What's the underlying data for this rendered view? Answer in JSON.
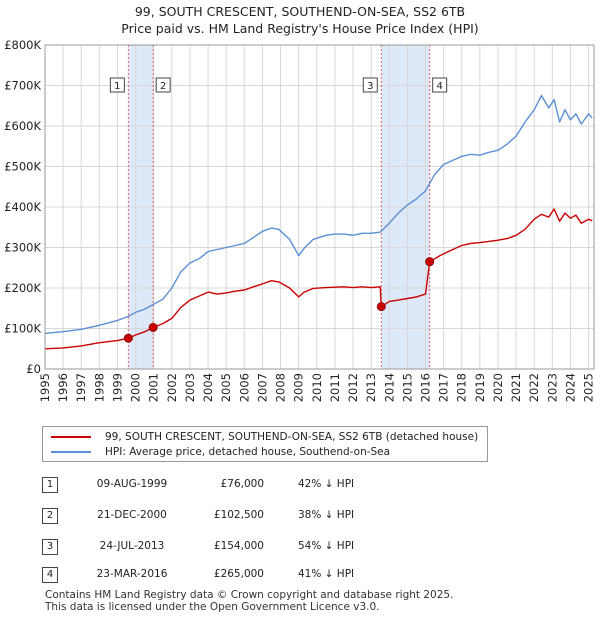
{
  "title_line1": "99, SOUTH CRESCENT, SOUTHEND-ON-SEA, SS2 6TB",
  "title_line2": "Price paid vs. HM Land Registry's House Price Index (HPI)",
  "colors": {
    "property": "#cc0000",
    "hpi": "#5b8fd6",
    "shade": "#dde8f8",
    "marker_line": "#e06060",
    "grid": "#d8d8d8"
  },
  "legend": {
    "property_label": "99, SOUTH CRESCENT, SOUTHEND-ON-SEA, SS2 6TB (detached house)",
    "hpi_label": "HPI: Average price, detached house, Southend-on-Sea"
  },
  "transactions": [
    {
      "num": "1",
      "date": "09-AUG-1999",
      "price": "£76,000",
      "hpi": "42% ↓ HPI"
    },
    {
      "num": "2",
      "date": "21-DEC-2000",
      "price": "£102,500",
      "hpi": "38% ↓ HPI"
    },
    {
      "num": "3",
      "date": "24-JUL-2013",
      "price": "£154,000",
      "hpi": "54% ↓ HPI"
    },
    {
      "num": "4",
      "date": "23-MAR-2016",
      "price": "£265,000",
      "hpi": "41% ↓ HPI"
    }
  ],
  "footer_line1": "Contains HM Land Registry data © Crown copyright and database right 2025.",
  "footer_line2": "This data is licensed under the Open Government Licence v3.0.",
  "chart_data": {
    "type": "line",
    "x_range": [
      1995,
      2025.3
    ],
    "ylim": [
      0,
      800000
    ],
    "y_ticks": [
      0,
      100000,
      200000,
      300000,
      400000,
      500000,
      600000,
      700000,
      800000
    ],
    "y_tick_labels": [
      "£0",
      "£100K",
      "£200K",
      "£300K",
      "£400K",
      "£500K",
      "£600K",
      "£700K",
      "£800K"
    ],
    "x_ticks": [
      1995,
      1996,
      1997,
      1998,
      1999,
      2000,
      2001,
      2002,
      2003,
      2004,
      2005,
      2006,
      2007,
      2008,
      2009,
      2010,
      2011,
      2012,
      2013,
      2014,
      2015,
      2016,
      2017,
      2018,
      2019,
      2020,
      2021,
      2022,
      2023,
      2024,
      2025
    ],
    "shaded_ranges": [
      [
        1999.6,
        2000.97
      ],
      [
        2013.56,
        2016.23
      ]
    ],
    "sale_markers": [
      {
        "label": "1",
        "x": 1999.6,
        "y": 76000
      },
      {
        "label": "2",
        "x": 2000.97,
        "y": 102500
      },
      {
        "label": "3",
        "x": 2013.56,
        "y": 154000
      },
      {
        "label": "4",
        "x": 2016.23,
        "y": 265000
      }
    ],
    "series": [
      {
        "name": "99, SOUTH CRESCENT, SOUTHEND-ON-SEA, SS2 6TB (detached house)",
        "x": [
          1995,
          1996,
          1997,
          1998,
          1999,
          1999.6,
          2000,
          2000.5,
          2000.97,
          2001.5,
          2002,
          2002.5,
          2003,
          2003.5,
          2004,
          2004.5,
          2005,
          2005.5,
          2006,
          2006.5,
          2007,
          2007.5,
          2007.9,
          2008.5,
          2009,
          2009.3,
          2009.8,
          2010.5,
          2011,
          2011.5,
          2012,
          2012.5,
          2013,
          2013.5,
          2013.56,
          2014,
          2014.5,
          2015,
          2015.5,
          2016,
          2016.23,
          2016.8,
          2017.5,
          2018,
          2018.5,
          2019,
          2019.5,
          2020,
          2020.5,
          2021,
          2021.5,
          2022,
          2022.4,
          2022.8,
          2023.1,
          2023.4,
          2023.7,
          2024,
          2024.3,
          2024.6,
          2025,
          2025.2
        ],
        "y": [
          50000,
          52000,
          57000,
          65000,
          70000,
          76000,
          84000,
          92000,
          102500,
          112000,
          125000,
          152000,
          170000,
          180000,
          190000,
          185000,
          188000,
          192000,
          195000,
          203000,
          210000,
          218000,
          215000,
          200000,
          178000,
          190000,
          199000,
          201000,
          202000,
          203000,
          201000,
          203000,
          201000,
          203000,
          154000,
          167000,
          170000,
          174000,
          178000,
          185000,
          265000,
          280000,
          295000,
          305000,
          310000,
          312000,
          315000,
          318000,
          322000,
          330000,
          345000,
          370000,
          382000,
          375000,
          395000,
          365000,
          385000,
          372000,
          380000,
          360000,
          370000,
          366000
        ]
      },
      {
        "name": "HPI: Average price, detached house, Southend-on-Sea",
        "x": [
          1995,
          1996,
          1997,
          1998,
          1999,
          1999.6,
          2000,
          2000.5,
          2001,
          2001.5,
          2002,
          2002.5,
          2003,
          2003.5,
          2004,
          2004.5,
          2005,
          2005.5,
          2006,
          2006.5,
          2007,
          2007.5,
          2007.9,
          2008.5,
          2009,
          2009.3,
          2009.8,
          2010.5,
          2011,
          2011.5,
          2012,
          2012.5,
          2013,
          2013.5,
          2014,
          2014.5,
          2015,
          2015.5,
          2016,
          2016.5,
          2017,
          2017.5,
          2018,
          2018.5,
          2019,
          2019.5,
          2020,
          2020.5,
          2021,
          2021.5,
          2022,
          2022.4,
          2022.8,
          2023.1,
          2023.4,
          2023.7,
          2024,
          2024.3,
          2024.6,
          2025,
          2025.2
        ],
        "y": [
          88000,
          92000,
          98000,
          108000,
          120000,
          130000,
          140000,
          148000,
          160000,
          172000,
          200000,
          240000,
          262000,
          272000,
          290000,
          295000,
          300000,
          305000,
          310000,
          325000,
          340000,
          348000,
          345000,
          320000,
          280000,
          298000,
          320000,
          330000,
          333000,
          333000,
          330000,
          335000,
          335000,
          338000,
          360000,
          385000,
          405000,
          420000,
          440000,
          480000,
          505000,
          515000,
          525000,
          530000,
          528000,
          535000,
          540000,
          555000,
          575000,
          610000,
          640000,
          675000,
          645000,
          665000,
          610000,
          640000,
          615000,
          630000,
          605000,
          630000,
          620000
        ]
      }
    ]
  }
}
